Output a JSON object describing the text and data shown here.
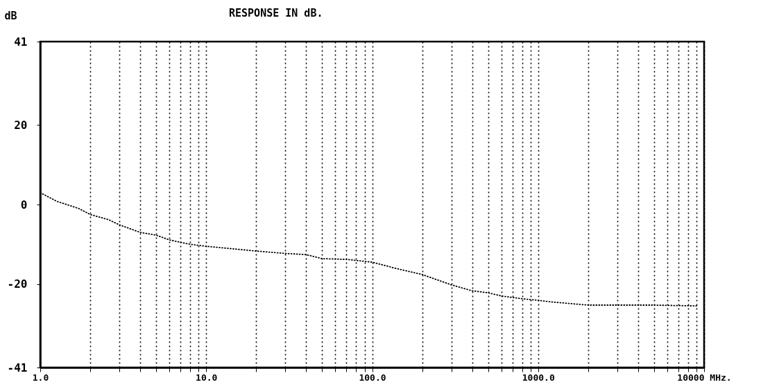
{
  "chart_data": {
    "type": "line",
    "title": "RESPONSE IN dB.",
    "ylabel": "dB",
    "log": "x",
    "grid": "x",
    "line_style": "dotted",
    "marker": "none",
    "x": [
      1,
      1.26,
      1.71,
      2,
      2.58,
      3,
      4,
      5,
      6,
      8,
      10,
      20,
      30,
      40,
      50,
      70,
      100,
      140,
      200,
      300,
      400,
      500,
      600,
      800,
      1000,
      1200,
      2000,
      3000,
      5000,
      9000
    ],
    "series": [
      {
        "color": "#000000",
        "values": [
          3,
          0.8,
          -1,
          -2.5,
          -3.8,
          -5.1,
          -7,
          -7.7,
          -8.9,
          -10,
          -10.5,
          -11.7,
          -12.3,
          -12.6,
          -13.6,
          -13.8,
          -14.5,
          -16.1,
          -17.6,
          -20.2,
          -21.7,
          -22.2,
          -23,
          -23.7,
          -24.1,
          -24.5,
          -25.3,
          -25.3,
          -25.3,
          -25.5
        ]
      }
    ],
    "xlim": [
      1,
      10000
    ],
    "ylim": [
      -41,
      41
    ],
    "xticks": [
      {
        "value": 1,
        "label": "1.0"
      },
      {
        "value": 2,
        "label": null
      },
      {
        "value": 3,
        "label": null
      },
      {
        "value": 4,
        "label": null
      },
      {
        "value": 5,
        "label": null
      },
      {
        "value": 6,
        "label": null
      },
      {
        "value": 7,
        "label": null
      },
      {
        "value": 8,
        "label": null
      },
      {
        "value": 9,
        "label": null
      },
      {
        "value": 10,
        "label": "10.0"
      },
      {
        "value": 20,
        "label": null
      },
      {
        "value": 30,
        "label": null
      },
      {
        "value": 40,
        "label": null
      },
      {
        "value": 50,
        "label": null
      },
      {
        "value": 60,
        "label": null
      },
      {
        "value": 70,
        "label": null
      },
      {
        "value": 80,
        "label": null
      },
      {
        "value": 90,
        "label": null
      },
      {
        "value": 100,
        "label": "100.0"
      },
      {
        "value": 200,
        "label": null
      },
      {
        "value": 300,
        "label": null
      },
      {
        "value": 400,
        "label": null
      },
      {
        "value": 500,
        "label": null
      },
      {
        "value": 600,
        "label": null
      },
      {
        "value": 700,
        "label": null
      },
      {
        "value": 800,
        "label": null
      },
      {
        "value": 900,
        "label": null
      },
      {
        "value": 1000,
        "label": "1000.0"
      },
      {
        "value": 2000,
        "label": null
      },
      {
        "value": 3000,
        "label": null
      },
      {
        "value": 4000,
        "label": null
      },
      {
        "value": 5000,
        "label": null
      },
      {
        "value": 6000,
        "label": null
      },
      {
        "value": 7000,
        "label": null
      },
      {
        "value": 8000,
        "label": null
      },
      {
        "value": 9000,
        "label": null
      },
      {
        "value": 10000,
        "label": "10000 MHz."
      }
    ],
    "yticks": [
      41,
      20,
      0,
      -20,
      -41
    ]
  }
}
